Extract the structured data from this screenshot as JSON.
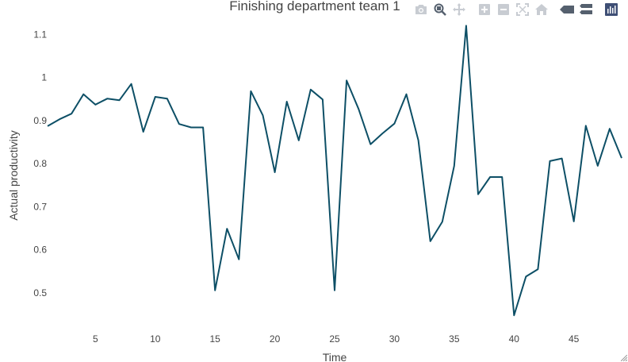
{
  "chart_data": {
    "type": "line",
    "title": "Finishing department team 1",
    "xlabel": "Time",
    "ylabel": "Actual productivity",
    "xlim": [
      1,
      49
    ],
    "ylim": [
      0.43,
      1.13
    ],
    "x_ticks": [
      5,
      10,
      15,
      20,
      25,
      30,
      35,
      40,
      45
    ],
    "y_ticks": [
      0.5,
      0.6,
      0.7,
      0.8,
      0.9,
      1,
      1.1
    ],
    "y_tick_labels": [
      "0.5",
      "0.6",
      "0.7",
      "0.8",
      "0.9",
      "1",
      "1.1"
    ],
    "series": [
      {
        "color": "#0d4f66",
        "x": [
          1,
          2,
          3,
          4,
          5,
          6,
          7,
          8,
          9,
          10,
          11,
          12,
          13,
          14,
          15,
          16,
          17,
          18,
          19,
          20,
          21,
          22,
          23,
          24,
          25,
          26,
          27,
          28,
          29,
          30,
          31,
          32,
          33,
          34,
          35,
          36,
          37,
          38,
          39,
          40,
          41,
          42,
          43,
          44,
          45,
          46,
          47,
          48,
          49
        ],
        "values": [
          0.887,
          0.903,
          0.916,
          0.961,
          0.937,
          0.951,
          0.947,
          0.985,
          0.874,
          0.955,
          0.951,
          0.892,
          0.884,
          0.884,
          0.506,
          0.649,
          0.578,
          0.968,
          0.912,
          0.78,
          0.944,
          0.854,
          0.972,
          0.949,
          0.506,
          0.993,
          0.927,
          0.845,
          0.87,
          0.893,
          0.961,
          0.854,
          0.62,
          0.665,
          0.795,
          1.12,
          0.729,
          0.769,
          0.769,
          0.448,
          0.538,
          0.555,
          0.806,
          0.812,
          0.666,
          0.888,
          0.795,
          0.881,
          0.813
        ]
      }
    ]
  },
  "toolbar": {
    "buttons": [
      {
        "name": "camera-icon"
      },
      {
        "name": "zoom-icon"
      },
      {
        "name": "pan-icon"
      },
      {
        "name": "zoom-in-icon"
      },
      {
        "name": "zoom-out-icon"
      },
      {
        "name": "autoscale-icon"
      },
      {
        "name": "reset-axes-icon"
      },
      {
        "name": "spike-lines-icon"
      },
      {
        "name": "hover-compare-icon"
      },
      {
        "name": "plotly-logo-icon"
      }
    ]
  }
}
